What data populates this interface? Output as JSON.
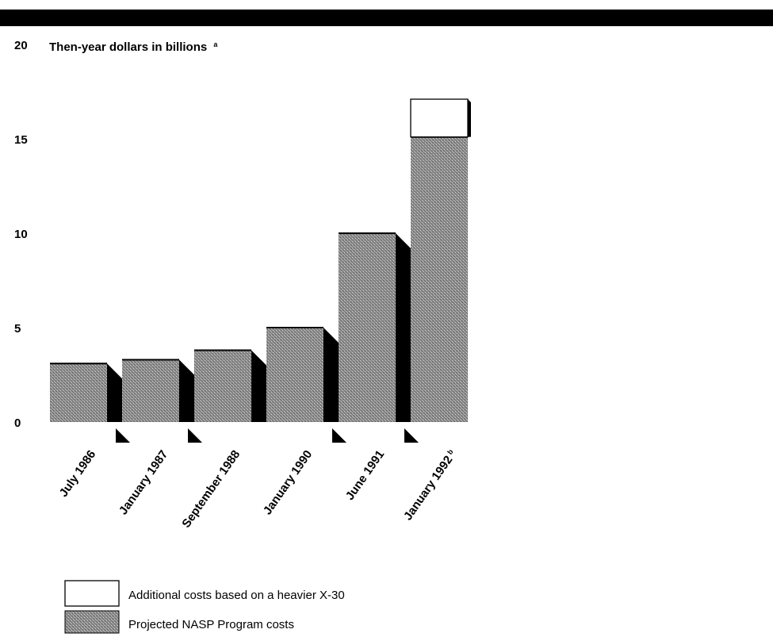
{
  "chart_data": {
    "type": "bar",
    "ylabel": "Then-year dollars in billions",
    "ylabel_note": "a",
    "ylim": [
      0,
      20
    ],
    "yticks": [
      "0",
      "5",
      "10",
      "15",
      "20"
    ],
    "categories": [
      "July 1986",
      "January 1987",
      "September 1988",
      "January 1990",
      "June 1991",
      "January 1992"
    ],
    "category_notes": [
      "",
      "",
      "",
      "",
      "",
      "b"
    ],
    "series": [
      {
        "name": "Projected NASP Program costs",
        "values": [
          3.1,
          3.3,
          3.8,
          5.0,
          10.0,
          15.1
        ]
      },
      {
        "name": "Additional costs based on a heavier X-30",
        "values": [
          0,
          0,
          0,
          0,
          0,
          2.0
        ]
      }
    ],
    "legend_position": "bottom-left",
    "grid": false
  },
  "colors": {
    "background": "#ffffff",
    "ink": "#000000",
    "hatch_fill": "#9a9a9a",
    "additional_fill": "#ffffff"
  }
}
